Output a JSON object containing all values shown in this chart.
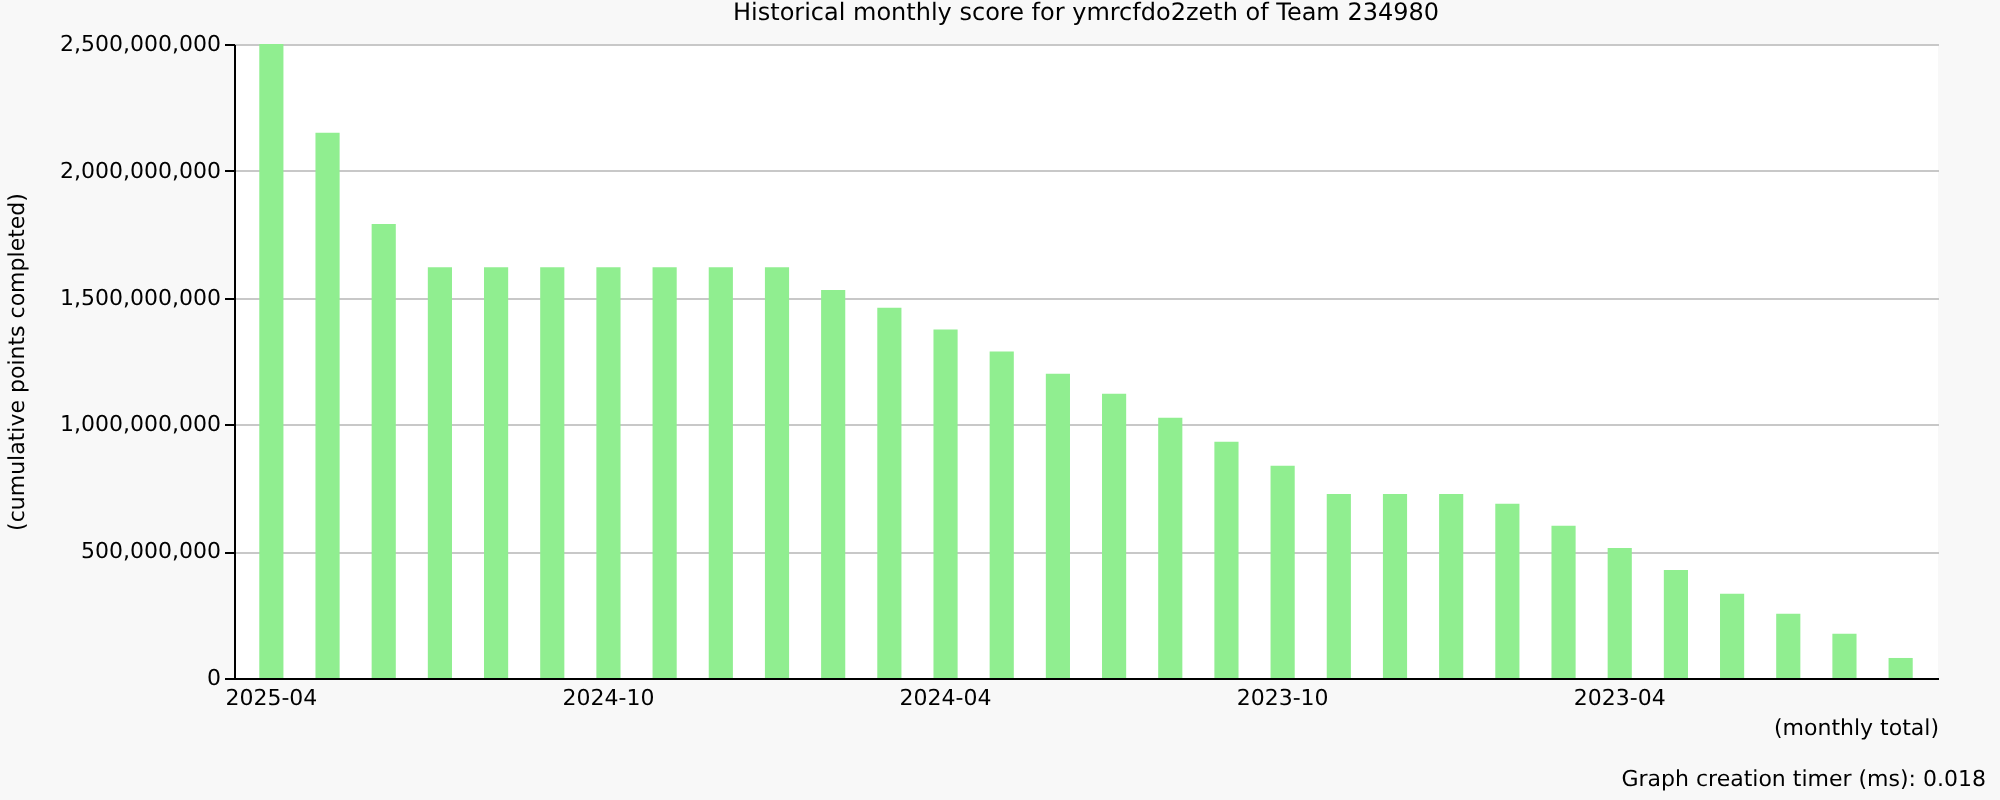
{
  "chart_data": {
    "type": "bar",
    "title": "Historical monthly score for ymrcfdo2zeth of Team 234980",
    "xlabel": "(monthly total)",
    "ylabel": "(cumulative points completed)",
    "categories": [
      "2025-04",
      null,
      null,
      null,
      null,
      null,
      "2024-10",
      null,
      null,
      null,
      null,
      null,
      "2024-04",
      null,
      null,
      null,
      null,
      null,
      "2023-10",
      null,
      null,
      null,
      null,
      null,
      "2023-04",
      null,
      null,
      null,
      null,
      null
    ],
    "values": [
      2500000000,
      2150000000,
      1790000000,
      1620000000,
      1620000000,
      1620000000,
      1620000000,
      1620000000,
      1620000000,
      1620000000,
      1530000000,
      1460000000,
      1374000000,
      1287000000,
      1200000000,
      1121000000,
      1026000000,
      932000000,
      837000000,
      726000000,
      726000000,
      726000000,
      687000000,
      600000000,
      513000000,
      426000000,
      332000000,
      253000000,
      174000000,
      79000000
    ],
    "color": "#90ee90",
    "ylim": [
      0,
      2500000000
    ],
    "yticks": [
      {
        "value": 0,
        "label": "0"
      },
      {
        "value": 500000000,
        "label": "500,000,000"
      },
      {
        "value": 1000000000,
        "label": "1,000,000,000"
      },
      {
        "value": 1500000000,
        "label": "1,500,000,000"
      },
      {
        "value": 2000000000,
        "label": "2,000,000,000"
      },
      {
        "value": 2500000000,
        "label": "2,500,000,000"
      }
    ],
    "grid": "y",
    "annotations": [
      "Graph creation timer (ms): 0.018"
    ]
  }
}
